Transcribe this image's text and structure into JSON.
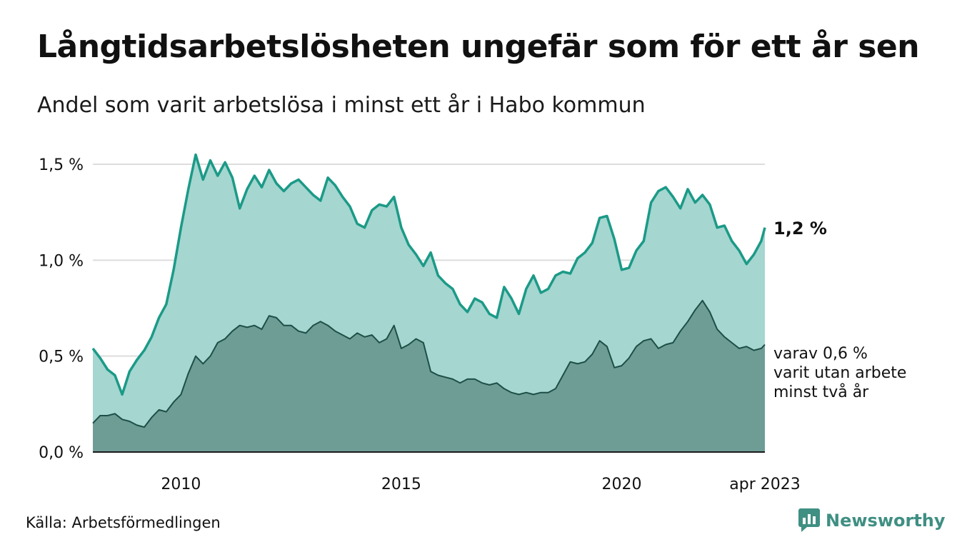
{
  "title": "Långtidsarbetslösheten ungefär som för ett år sen",
  "subtitle": "Andel som varit arbetslösa i minst ett år i Habo kommun",
  "source": "Källa: Arbetsförmedlingen",
  "brand": {
    "name": "Newsworthy",
    "icon": "bar-chart-speech-bubble-icon"
  },
  "colors": {
    "total_line": "#1b9a87",
    "total_fill": "#a5d6d0",
    "sub_line": "#1e4f47",
    "sub_fill": "#6e9d96",
    "grid": "#dddddd",
    "brand": "#3f8f83"
  },
  "chart_data": {
    "type": "area",
    "xlim": [
      "2008-01",
      "2023-04"
    ],
    "ylim": [
      0,
      1.5
    ],
    "y_ticks": [
      {
        "value": 0.0,
        "label": "0,0 %"
      },
      {
        "value": 0.5,
        "label": "0,5 %"
      },
      {
        "value": 1.0,
        "label": "1,0 %"
      },
      {
        "value": 1.5,
        "label": "1,5 %"
      }
    ],
    "x_ticks": [
      {
        "value": "2010-01",
        "label": "2010"
      },
      {
        "value": "2015-01",
        "label": "2015"
      },
      {
        "value": "2020-01",
        "label": "2020"
      },
      {
        "value": "2023-04",
        "label": "apr 2023"
      }
    ],
    "grid": "horizontal",
    "annotations": {
      "total_label": "1,2 %",
      "sub_label": [
        "varav 0,6 %",
        "varit utan arbete",
        "minst två år"
      ]
    },
    "series": [
      {
        "key": "total",
        "points": [
          [
            "2008-01",
            0.54
          ],
          [
            "2008-03",
            0.49
          ],
          [
            "2008-05",
            0.43
          ],
          [
            "2008-07",
            0.4
          ],
          [
            "2008-09",
            0.3
          ],
          [
            "2008-11",
            0.42
          ],
          [
            "2009-01",
            0.48
          ],
          [
            "2009-03",
            0.53
          ],
          [
            "2009-05",
            0.6
          ],
          [
            "2009-07",
            0.7
          ],
          [
            "2009-09",
            0.77
          ],
          [
            "2009-11",
            0.95
          ],
          [
            "2010-01",
            1.17
          ],
          [
            "2010-03",
            1.37
          ],
          [
            "2010-05",
            1.55
          ],
          [
            "2010-07",
            1.42
          ],
          [
            "2010-09",
            1.52
          ],
          [
            "2010-11",
            1.44
          ],
          [
            "2011-01",
            1.51
          ],
          [
            "2011-03",
            1.43
          ],
          [
            "2011-05",
            1.27
          ],
          [
            "2011-07",
            1.37
          ],
          [
            "2011-09",
            1.44
          ],
          [
            "2011-11",
            1.38
          ],
          [
            "2012-01",
            1.47
          ],
          [
            "2012-03",
            1.4
          ],
          [
            "2012-05",
            1.36
          ],
          [
            "2012-07",
            1.4
          ],
          [
            "2012-09",
            1.42
          ],
          [
            "2012-11",
            1.38
          ],
          [
            "2013-01",
            1.34
          ],
          [
            "2013-03",
            1.31
          ],
          [
            "2013-05",
            1.43
          ],
          [
            "2013-07",
            1.39
          ],
          [
            "2013-09",
            1.33
          ],
          [
            "2013-11",
            1.28
          ],
          [
            "2014-01",
            1.19
          ],
          [
            "2014-03",
            1.17
          ],
          [
            "2014-05",
            1.26
          ],
          [
            "2014-07",
            1.29
          ],
          [
            "2014-09",
            1.28
          ],
          [
            "2014-11",
            1.33
          ],
          [
            "2015-01",
            1.17
          ],
          [
            "2015-03",
            1.08
          ],
          [
            "2015-05",
            1.03
          ],
          [
            "2015-07",
            0.97
          ],
          [
            "2015-09",
            1.04
          ],
          [
            "2015-11",
            0.92
          ],
          [
            "2016-01",
            0.88
          ],
          [
            "2016-03",
            0.85
          ],
          [
            "2016-05",
            0.77
          ],
          [
            "2016-07",
            0.73
          ],
          [
            "2016-09",
            0.8
          ],
          [
            "2016-11",
            0.78
          ],
          [
            "2017-01",
            0.72
          ],
          [
            "2017-03",
            0.7
          ],
          [
            "2017-05",
            0.86
          ],
          [
            "2017-07",
            0.8
          ],
          [
            "2017-09",
            0.72
          ],
          [
            "2017-11",
            0.85
          ],
          [
            "2018-01",
            0.92
          ],
          [
            "2018-03",
            0.83
          ],
          [
            "2018-05",
            0.85
          ],
          [
            "2018-07",
            0.92
          ],
          [
            "2018-09",
            0.94
          ],
          [
            "2018-11",
            0.93
          ],
          [
            "2019-01",
            1.01
          ],
          [
            "2019-03",
            1.04
          ],
          [
            "2019-05",
            1.09
          ],
          [
            "2019-07",
            1.22
          ],
          [
            "2019-09",
            1.23
          ],
          [
            "2019-11",
            1.11
          ],
          [
            "2020-01",
            0.95
          ],
          [
            "2020-03",
            0.96
          ],
          [
            "2020-05",
            1.05
          ],
          [
            "2020-07",
            1.1
          ],
          [
            "2020-09",
            1.3
          ],
          [
            "2020-11",
            1.36
          ],
          [
            "2021-01",
            1.38
          ],
          [
            "2021-03",
            1.33
          ],
          [
            "2021-05",
            1.27
          ],
          [
            "2021-07",
            1.37
          ],
          [
            "2021-09",
            1.3
          ],
          [
            "2021-11",
            1.34
          ],
          [
            "2022-01",
            1.29
          ],
          [
            "2022-03",
            1.17
          ],
          [
            "2022-05",
            1.18
          ],
          [
            "2022-07",
            1.1
          ],
          [
            "2022-09",
            1.05
          ],
          [
            "2022-11",
            0.98
          ],
          [
            "2023-01",
            1.03
          ],
          [
            "2023-03",
            1.1
          ],
          [
            "2023-04",
            1.17
          ]
        ]
      },
      {
        "key": "sub",
        "points": [
          [
            "2008-01",
            0.15
          ],
          [
            "2008-03",
            0.19
          ],
          [
            "2008-05",
            0.19
          ],
          [
            "2008-07",
            0.2
          ],
          [
            "2008-09",
            0.17
          ],
          [
            "2008-11",
            0.16
          ],
          [
            "2009-01",
            0.14
          ],
          [
            "2009-03",
            0.13
          ],
          [
            "2009-05",
            0.18
          ],
          [
            "2009-07",
            0.22
          ],
          [
            "2009-09",
            0.21
          ],
          [
            "2009-11",
            0.26
          ],
          [
            "2010-01",
            0.3
          ],
          [
            "2010-03",
            0.41
          ],
          [
            "2010-05",
            0.5
          ],
          [
            "2010-07",
            0.46
          ],
          [
            "2010-09",
            0.5
          ],
          [
            "2010-11",
            0.57
          ],
          [
            "2011-01",
            0.59
          ],
          [
            "2011-03",
            0.63
          ],
          [
            "2011-05",
            0.66
          ],
          [
            "2011-07",
            0.65
          ],
          [
            "2011-09",
            0.66
          ],
          [
            "2011-11",
            0.64
          ],
          [
            "2012-01",
            0.71
          ],
          [
            "2012-03",
            0.7
          ],
          [
            "2012-05",
            0.66
          ],
          [
            "2012-07",
            0.66
          ],
          [
            "2012-09",
            0.63
          ],
          [
            "2012-11",
            0.62
          ],
          [
            "2013-01",
            0.66
          ],
          [
            "2013-03",
            0.68
          ],
          [
            "2013-05",
            0.66
          ],
          [
            "2013-07",
            0.63
          ],
          [
            "2013-09",
            0.61
          ],
          [
            "2013-11",
            0.59
          ],
          [
            "2014-01",
            0.62
          ],
          [
            "2014-03",
            0.6
          ],
          [
            "2014-05",
            0.61
          ],
          [
            "2014-07",
            0.57
          ],
          [
            "2014-09",
            0.59
          ],
          [
            "2014-11",
            0.66
          ],
          [
            "2015-01",
            0.54
          ],
          [
            "2015-03",
            0.56
          ],
          [
            "2015-05",
            0.59
          ],
          [
            "2015-07",
            0.57
          ],
          [
            "2015-09",
            0.42
          ],
          [
            "2015-11",
            0.4
          ],
          [
            "2016-01",
            0.39
          ],
          [
            "2016-03",
            0.38
          ],
          [
            "2016-05",
            0.36
          ],
          [
            "2016-07",
            0.38
          ],
          [
            "2016-09",
            0.38
          ],
          [
            "2016-11",
            0.36
          ],
          [
            "2017-01",
            0.35
          ],
          [
            "2017-03",
            0.36
          ],
          [
            "2017-05",
            0.33
          ],
          [
            "2017-07",
            0.31
          ],
          [
            "2017-09",
            0.3
          ],
          [
            "2017-11",
            0.31
          ],
          [
            "2018-01",
            0.3
          ],
          [
            "2018-03",
            0.31
          ],
          [
            "2018-05",
            0.31
          ],
          [
            "2018-07",
            0.33
          ],
          [
            "2018-09",
            0.4
          ],
          [
            "2018-11",
            0.47
          ],
          [
            "2019-01",
            0.46
          ],
          [
            "2019-03",
            0.47
          ],
          [
            "2019-05",
            0.51
          ],
          [
            "2019-07",
            0.58
          ],
          [
            "2019-09",
            0.55
          ],
          [
            "2019-11",
            0.44
          ],
          [
            "2020-01",
            0.45
          ],
          [
            "2020-03",
            0.49
          ],
          [
            "2020-05",
            0.55
          ],
          [
            "2020-07",
            0.58
          ],
          [
            "2020-09",
            0.59
          ],
          [
            "2020-11",
            0.54
          ],
          [
            "2021-01",
            0.56
          ],
          [
            "2021-03",
            0.57
          ],
          [
            "2021-05",
            0.63
          ],
          [
            "2021-07",
            0.68
          ],
          [
            "2021-09",
            0.74
          ],
          [
            "2021-11",
            0.79
          ],
          [
            "2022-01",
            0.73
          ],
          [
            "2022-03",
            0.64
          ],
          [
            "2022-05",
            0.6
          ],
          [
            "2022-07",
            0.57
          ],
          [
            "2022-09",
            0.54
          ],
          [
            "2022-11",
            0.55
          ],
          [
            "2023-01",
            0.53
          ],
          [
            "2023-03",
            0.54
          ],
          [
            "2023-04",
            0.56
          ]
        ]
      }
    ]
  }
}
